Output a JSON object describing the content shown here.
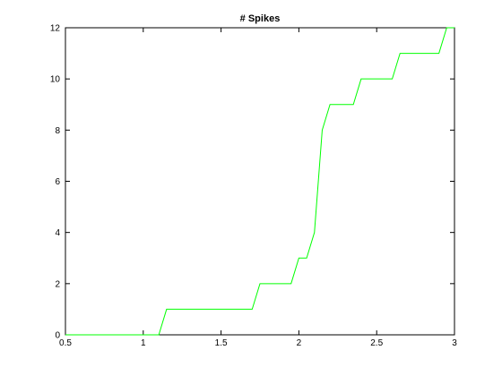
{
  "chart_data": {
    "type": "line",
    "title": "# Spikes",
    "xlabel": "",
    "ylabel": "",
    "xlim": [
      0.5,
      3
    ],
    "ylim": [
      0,
      12
    ],
    "xticks": [
      0.5,
      1,
      1.5,
      2,
      2.5,
      3
    ],
    "xtick_labels": [
      "0.5",
      "1",
      "1.5",
      "2",
      "2.5",
      "3"
    ],
    "yticks": [
      0,
      2,
      4,
      6,
      8,
      10,
      12
    ],
    "ytick_labels": [
      "0",
      "2",
      "4",
      "6",
      "8",
      "10",
      "12"
    ],
    "grid": false,
    "legend": "none",
    "line_color": "#00ff00",
    "series": [
      {
        "x": [
          0.5,
          1.1,
          1.15,
          1.7,
          1.75,
          1.95,
          2.0,
          2.05,
          2.1,
          2.15,
          2.2,
          2.35,
          2.4,
          2.6,
          2.65,
          2.9,
          2.95,
          3.0
        ],
        "y": [
          0,
          0,
          1,
          1,
          2,
          2,
          3,
          3,
          4,
          8,
          9,
          9,
          10,
          10,
          11,
          11,
          12,
          12
        ]
      }
    ]
  }
}
